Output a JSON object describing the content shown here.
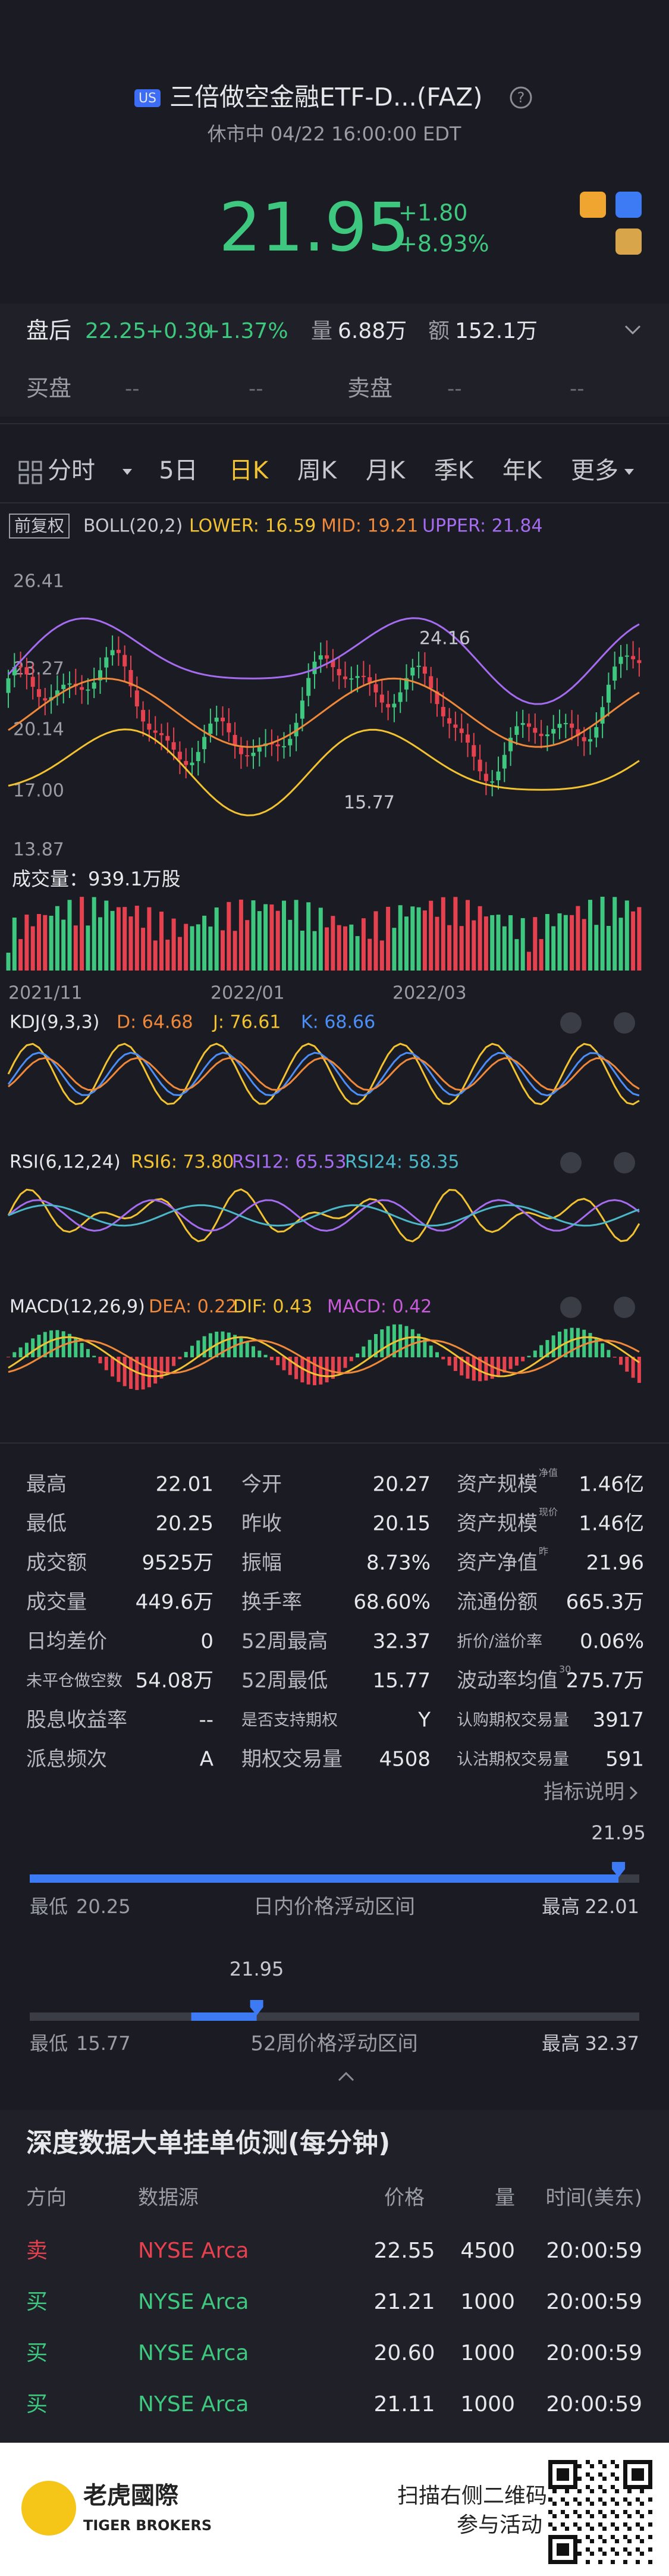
{
  "header": {
    "badge": "US",
    "title": "三倍做空金融ETF-D...(FAZ)",
    "status": "休市中 04/22 16:00:00 EDT"
  },
  "quote": {
    "price": "21.95",
    "change": "+1.80",
    "change_pct": "+8.93%"
  },
  "after_hours": {
    "label": "盘后",
    "price": "22.25",
    "change": "+0.30",
    "pct": "+1.37%",
    "vol_label": "量",
    "vol": "6.88万",
    "amt_label": "额",
    "amt": "152.1万"
  },
  "bid_ask": {
    "bid_label": "买盘",
    "ask_label": "卖盘",
    "bid": [
      "--",
      "--"
    ],
    "ask": [
      "--",
      "--"
    ]
  },
  "tabs": {
    "items": [
      "分时",
      "5日",
      "日K",
      "周K",
      "月K",
      "季K",
      "年K",
      "更多"
    ],
    "active": 2
  },
  "boll": {
    "adjust": "前复权",
    "name": "BOLL(20,2)",
    "lower": "LOWER: 16.59",
    "mid": "MID: 19.21",
    "upper": "UPPER: 21.84"
  },
  "price_axis": [
    "26.41",
    "23.27",
    "20.14",
    "17.00",
    "13.87"
  ],
  "annotations": {
    "high": "24.16",
    "low": "15.77"
  },
  "volume": {
    "label": "成交量：939.1万股"
  },
  "dates": [
    "2021/11",
    "2022/01",
    "2022/03"
  ],
  "kdj": {
    "name": "KDJ(9,3,3)",
    "d": "D: 64.68",
    "j": "J: 76.61",
    "k": "K: 68.66"
  },
  "rsi": {
    "name": "RSI(6,12,24)",
    "r6": "RSI6: 73.80",
    "r12": "RSI12: 65.53",
    "r24": "RSI24: 58.35"
  },
  "macd": {
    "name": "MACD(12,26,9)",
    "dea": "DEA: 0.22",
    "dif": "DIF: 0.43",
    "macd": "MACD: 0.42"
  },
  "stats": {
    "rows": [
      [
        {
          "label": "最高",
          "value": "22.01"
        },
        {
          "label": "今开",
          "value": "20.27"
        },
        {
          "label": "资产规模",
          "sup": "净值",
          "value": "1.46亿"
        }
      ],
      [
        {
          "label": "最低",
          "value": "20.25"
        },
        {
          "label": "昨收",
          "value": "20.15"
        },
        {
          "label": "资产规模",
          "sup": "现价",
          "value": "1.46亿"
        }
      ],
      [
        {
          "label": "成交额",
          "value": "9525万"
        },
        {
          "label": "振幅",
          "value": "8.73%"
        },
        {
          "label": "资产净值",
          "sup": "昨",
          "value": "21.96"
        }
      ],
      [
        {
          "label": "成交量",
          "value": "449.6万"
        },
        {
          "label": "换手率",
          "value": "68.60%"
        },
        {
          "label": "流通份额",
          "value": "665.3万"
        }
      ],
      [
        {
          "label": "日均差价",
          "value": "0"
        },
        {
          "label": "52周最高",
          "value": "32.37"
        },
        {
          "label": "折价/溢价率",
          "value": "0.06%"
        }
      ],
      [
        {
          "label": "未平仓做空数",
          "value": "54.08万"
        },
        {
          "label": "52周最低",
          "value": "15.77"
        },
        {
          "label": "波动率均值",
          "sup": "30",
          "value": "275.7万"
        }
      ],
      [
        {
          "label": "股息收益率",
          "value": "--"
        },
        {
          "label": "是否支持期权",
          "value": "Y"
        },
        {
          "label": "认购期权交易量",
          "value": "3917"
        }
      ],
      [
        {
          "label": "派息频次",
          "value": "A"
        },
        {
          "label": "期权交易量",
          "value": "4508"
        },
        {
          "label": "认沽期权交易量",
          "value": "591"
        }
      ]
    ],
    "link": "指标说明"
  },
  "day_range": {
    "low_label": "最低",
    "high_label": "最高",
    "title": "日内价格浮动区间",
    "low": 20.25,
    "high": 22.01,
    "current": 21.95
  },
  "week52_range": {
    "low_label": "最低",
    "high_label": "最高",
    "title": "52周价格浮动区间",
    "low": 15.77,
    "high": 32.37,
    "current": 21.95
  },
  "orders": {
    "title": "深度数据大单挂单侦测(每分钟)",
    "headers": [
      "方向",
      "数据源",
      "价格",
      "量",
      "时间(美东)"
    ],
    "rows": [
      [
        "卖",
        "NYSE Arca",
        "22.55",
        "4500",
        "20:00:59"
      ],
      [
        "买",
        "NYSE Arca",
        "21.21",
        "1000",
        "20:00:59"
      ],
      [
        "买",
        "NYSE Arca",
        "20.60",
        "1000",
        "20:00:59"
      ],
      [
        "买",
        "NYSE Arca",
        "21.11",
        "1000",
        "20:00:59"
      ]
    ]
  },
  "footer": {
    "brand": "老虎國際",
    "brand_en": "TIGER BROKERS",
    "scan": "扫描右侧二维码",
    "join": "参与活动"
  }
}
